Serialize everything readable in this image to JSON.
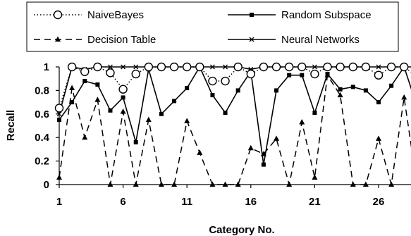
{
  "chart_data": {
    "type": "line",
    "title": "",
    "xlabel": "Category No.",
    "ylabel": "Recall",
    "xlim": [
      1,
      30
    ],
    "ylim": [
      0,
      1
    ],
    "x_ticks": [
      "1",
      "6",
      "11",
      "16",
      "21",
      "26"
    ],
    "y_ticks": [
      "0",
      "0.2",
      "0.4",
      "0.6",
      "0.8",
      "1"
    ],
    "grid": false,
    "legend_position": "top, outside plot, boxed, 2 columns",
    "x": [
      1,
      2,
      3,
      4,
      5,
      6,
      7,
      8,
      9,
      10,
      11,
      12,
      13,
      14,
      15,
      16,
      17,
      18,
      19,
      20,
      21,
      22,
      23,
      24,
      25,
      26,
      27,
      28,
      29,
      30
    ],
    "series": [
      {
        "name": "NaiveBayes",
        "line": "dotted",
        "marker": "open-circle",
        "color": "#000000",
        "values": [
          0.65,
          1.0,
          0.96,
          1.0,
          0.95,
          0.81,
          0.94,
          1.0,
          1.0,
          1.0,
          1.0,
          1.0,
          0.88,
          0.88,
          1.0,
          0.94,
          1.0,
          1.0,
          1.0,
          1.0,
          0.94,
          1.0,
          1.0,
          1.0,
          1.0,
          0.93,
          1.0,
          1.0,
          0.92,
          1.0
        ]
      },
      {
        "name": "Random Subspace",
        "line": "solid",
        "marker": "filled-square",
        "color": "#000000",
        "values": [
          0.55,
          0.7,
          0.88,
          0.85,
          0.63,
          0.74,
          0.36,
          0.98,
          0.6,
          0.71,
          0.82,
          1.0,
          0.76,
          0.61,
          0.8,
          0.96,
          0.17,
          0.8,
          0.93,
          0.93,
          0.61,
          0.94,
          0.81,
          0.83,
          0.8,
          0.7,
          0.84,
          1.0,
          0.67,
          0.49
        ]
      },
      {
        "name": "Decision Table",
        "line": "dashed",
        "marker": "filled-triangle",
        "color": "#000000",
        "values": [
          0.06,
          0.82,
          0.4,
          0.72,
          0.0,
          0.62,
          0.0,
          0.55,
          0.0,
          0.0,
          0.54,
          0.27,
          0.0,
          0.0,
          0.0,
          0.31,
          0.26,
          0.39,
          0.0,
          0.53,
          0.06,
          0.93,
          0.76,
          0.0,
          0.0,
          0.39,
          0.0,
          0.74,
          0.0,
          0.0
        ]
      },
      {
        "name": "Neural Networks",
        "line": "solid",
        "marker": "cross",
        "color": "#000000",
        "values": [
          0.6,
          1.0,
          0.98,
          1.0,
          1.0,
          1.0,
          1.0,
          1.0,
          1.0,
          1.0,
          1.0,
          1.0,
          1.0,
          1.0,
          1.0,
          0.98,
          1.0,
          1.0,
          1.0,
          1.0,
          1.0,
          1.0,
          1.0,
          1.0,
          1.0,
          1.0,
          1.0,
          1.0,
          1.0,
          1.0
        ]
      }
    ]
  }
}
